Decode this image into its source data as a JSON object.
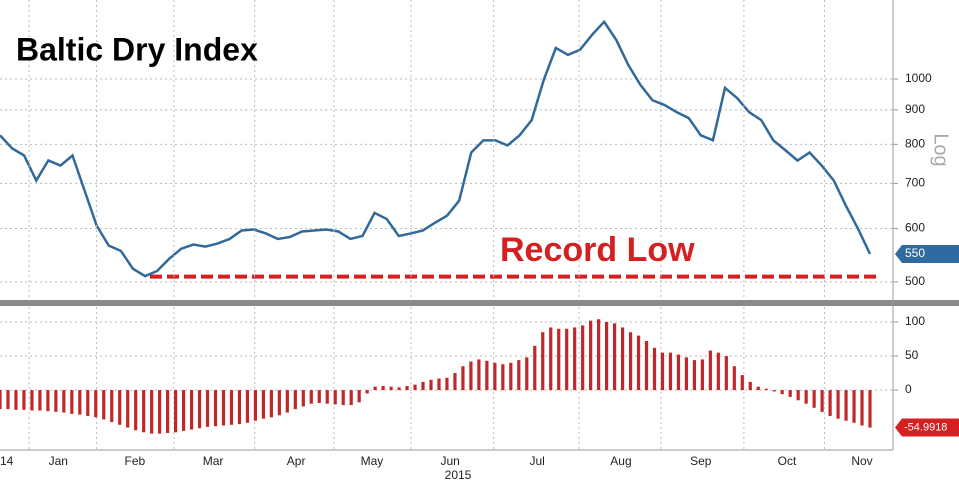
{
  "chart_data": [
    {
      "type": "line",
      "title": "Baltic Dry Index",
      "annotation": "Record Low",
      "y_axis_label": "Log",
      "log_scale": true,
      "grid": true,
      "color": "#33699a",
      "ylim": [
        470,
        1310
      ],
      "yticks": [
        500,
        600,
        700,
        800,
        900,
        1000
      ],
      "reference_line": 509,
      "reference_color": "#d42020",
      "values": [
        825,
        789,
        770,
        707,
        757,
        744,
        770,
        683,
        606,
        566,
        556,
        523,
        510,
        519,
        541,
        560,
        568,
        564,
        570,
        579,
        596,
        598,
        590,
        579,
        583,
        594,
        596,
        598,
        594,
        579,
        585,
        633,
        620,
        585,
        590,
        596,
        612,
        627,
        660,
        778,
        811,
        811,
        797,
        825,
        869,
        997,
        1112,
        1086,
        1105,
        1163,
        1216,
        1143,
        1049,
        980,
        930,
        915,
        893,
        875,
        825,
        811,
        970,
        937,
        893,
        869,
        811,
        784,
        757,
        778,
        744,
        707,
        649,
        600,
        550
      ]
    },
    {
      "type": "bar",
      "grid": true,
      "color": "#c0282a",
      "label_color": "#d42020",
      "ylim": [
        -88,
        122
      ],
      "yticks": [
        0,
        50,
        100
      ],
      "xlim": [
        0,
        109
      ],
      "xticks": [
        {
          "value": 0,
          "label": "14"
        },
        {
          "value": 7.3,
          "label": "Jan"
        },
        {
          "value": 16.9,
          "label": "Feb"
        },
        {
          "value": 26.7,
          "label": "Mar"
        },
        {
          "value": 37.1,
          "label": "Apr"
        },
        {
          "value": 46.6,
          "label": "May"
        },
        {
          "value": 56.4,
          "label": "Jun"
        },
        {
          "value": 67.3,
          "label": "Jul"
        },
        {
          "value": 77.8,
          "label": "Aug"
        },
        {
          "value": 87.8,
          "label": "Sep"
        },
        {
          "value": 98.6,
          "label": "Oct"
        },
        {
          "value": 108,
          "label": "Nov"
        }
      ],
      "year_label": "2015",
      "values": [
        -28,
        -28,
        -29,
        -29,
        -30,
        -30,
        -31,
        -32,
        -33,
        -35,
        -36,
        -38,
        -40,
        -43,
        -47,
        -51,
        -55,
        -59,
        -62,
        -64,
        -64,
        -63,
        -62,
        -60,
        -58,
        -56,
        -54,
        -53,
        -52,
        -51,
        -50,
        -48,
        -45,
        -42,
        -40,
        -37,
        -33,
        -28,
        -24,
        -20,
        -19,
        -20,
        -21,
        -22,
        -22,
        -18,
        -5,
        5,
        6,
        5,
        4,
        6,
        8,
        12,
        15,
        17,
        18,
        25,
        35,
        42,
        45,
        43,
        40,
        38,
        40,
        44,
        48,
        65,
        85,
        92,
        90,
        90,
        92,
        95,
        102,
        104,
        100,
        98,
        92,
        85,
        80,
        72,
        62,
        55,
        55,
        52,
        48,
        44,
        45,
        58,
        55,
        50,
        35,
        22,
        12,
        5,
        2,
        -2,
        -6,
        -10,
        -15,
        -20,
        -26,
        -32,
        -38,
        -42,
        -45,
        -48,
        -52,
        -54.9918
      ]
    }
  ]
}
